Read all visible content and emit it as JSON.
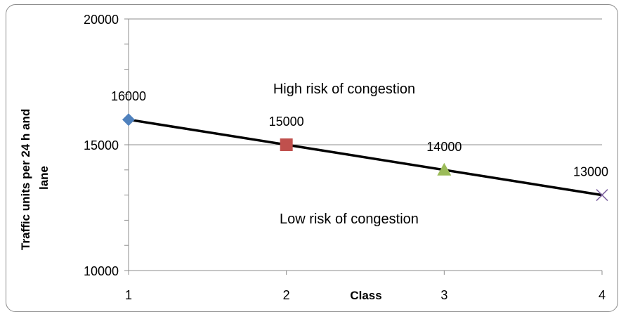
{
  "chart_data": {
    "type": "line",
    "x": [
      1,
      2,
      3,
      4
    ],
    "values": [
      16000,
      15000,
      14000,
      13000
    ],
    "data_labels": [
      "16000",
      "15000",
      "14000",
      "13000"
    ],
    "markers": [
      {
        "shape": "diamond",
        "color": "#4f81bd"
      },
      {
        "shape": "square",
        "color": "#c0504d"
      },
      {
        "shape": "triangle",
        "color": "#9bbb59"
      },
      {
        "shape": "x",
        "color": "#8064a2"
      }
    ],
    "xlabel": "Class",
    "ylabel": "Traffic units per 24 h and lane",
    "xticks": [
      "1",
      "2",
      "3",
      "4"
    ],
    "yticks": [
      "10000",
      "15000",
      "20000"
    ],
    "ytick_values": [
      10000,
      15000,
      20000
    ],
    "xlim": [
      1,
      4
    ],
    "ylim": [
      10000,
      20000
    ],
    "grid": "horizontal major gridlines",
    "line_color": "#000000",
    "annotations": {
      "high": "High risk of congestion",
      "low": "Low risk of congestion"
    }
  }
}
